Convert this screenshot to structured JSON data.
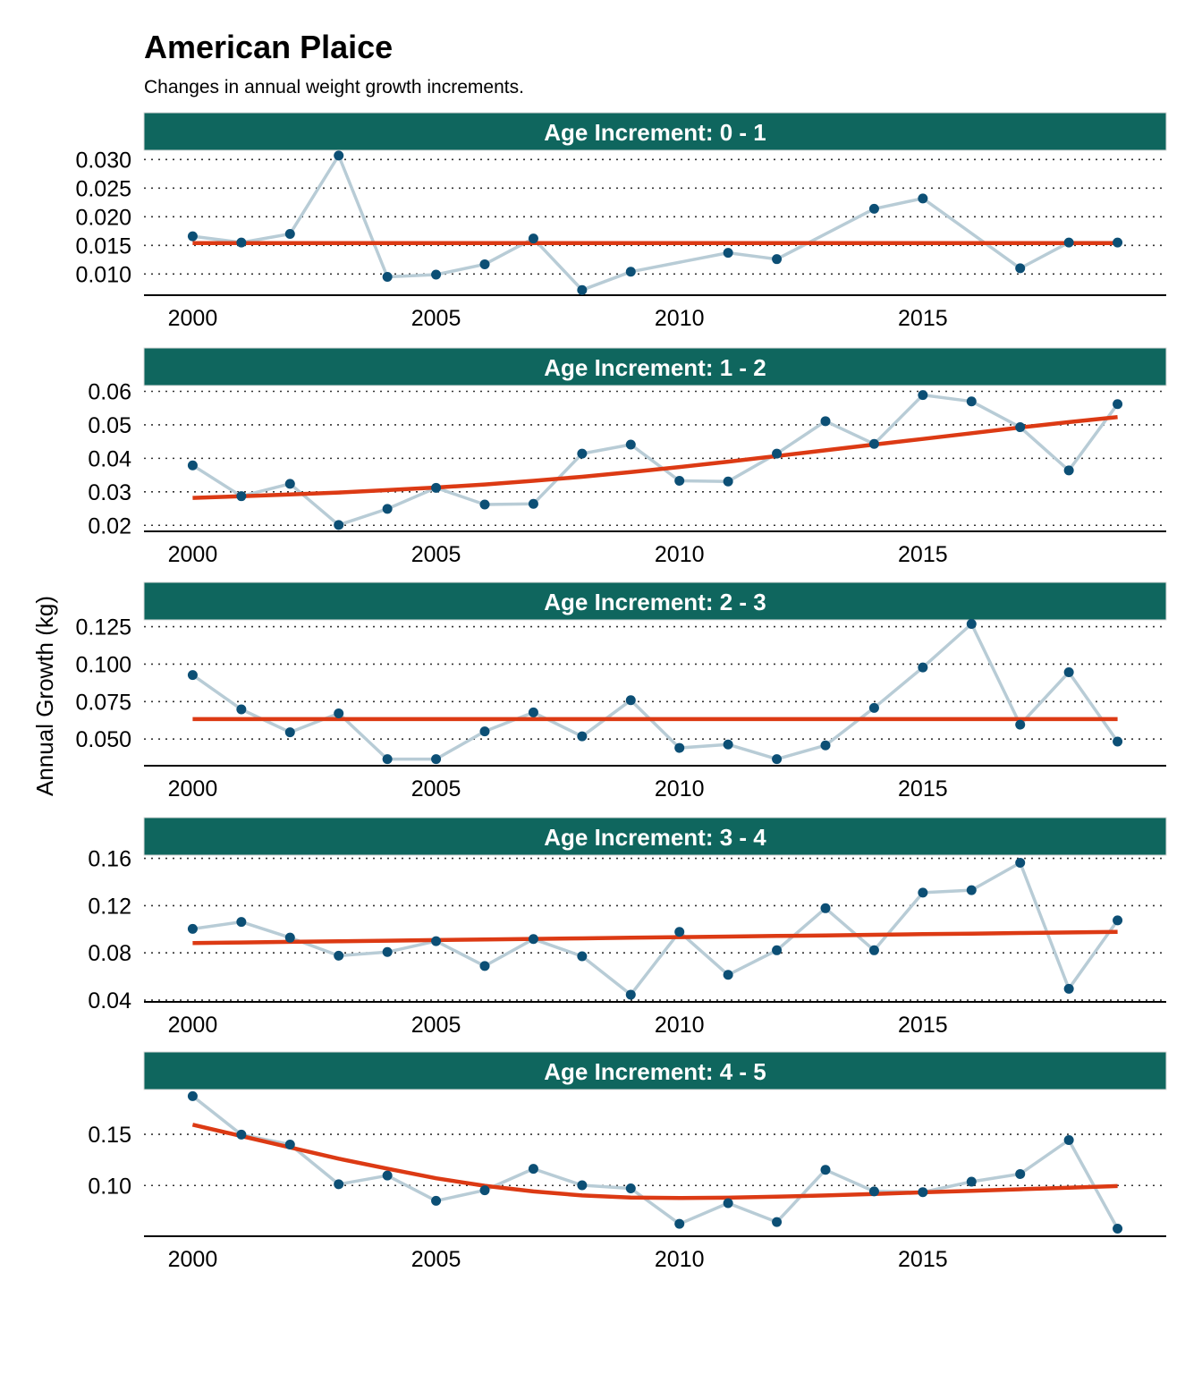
{
  "title": "American Plaice",
  "subtitle": "Changes in annual weight growth increments.",
  "ylabel": "Annual Growth  (kg)",
  "colors": {
    "strip_fill": "#0f665e",
    "strip_text": "#ffffff",
    "series_line": "#b8ccd6",
    "series_point": "#0c4f75",
    "trend_line": "#dc3a14",
    "grid": "#333333",
    "axis": "#000000"
  },
  "chart_data": [
    {
      "type": "line",
      "facet": "Age Increment: 0 - 1",
      "x": [
        2000,
        2001,
        2002,
        2003,
        2004,
        2005,
        2006,
        2007,
        2008,
        2009,
        2011,
        2012,
        2014,
        2015,
        2017,
        2018,
        2019
      ],
      "y": [
        0.0166,
        0.0155,
        0.017,
        0.0307,
        0.0095,
        0.0099,
        0.0117,
        0.0162,
        0.0072,
        0.0104,
        0.0137,
        0.0126,
        0.0214,
        0.0232,
        0.011,
        0.0155,
        0.0155
      ],
      "trend": [
        0.0154,
        0.0154,
        0.0154,
        0.0154,
        0.0154,
        0.0154,
        0.0154,
        0.0154,
        0.0154,
        0.0154,
        0.0154,
        0.0154,
        0.0154,
        0.0154,
        0.0154,
        0.0154,
        0.0154
      ],
      "ylim": [
        0.0063,
        0.0313
      ],
      "yticks": [
        0.01,
        0.015,
        0.02,
        0.025,
        0.03
      ],
      "ytick_labels": [
        "0.010",
        "0.015",
        "0.020",
        "0.025",
        "0.030"
      ],
      "xlim": [
        1999,
        2020
      ],
      "xticks": [
        2000,
        2005,
        2010,
        2015
      ],
      "xtick_labels": [
        "2000",
        "2005",
        "2010",
        "2015"
      ],
      "grid": "horizontal dotted"
    },
    {
      "type": "line",
      "facet": "Age Increment: 1 - 2",
      "x": [
        2000,
        2001,
        2002,
        2003,
        2004,
        2005,
        2006,
        2007,
        2008,
        2009,
        2010,
        2011,
        2012,
        2013,
        2014,
        2015,
        2016,
        2017,
        2018,
        2019
      ],
      "y": [
        0.0379,
        0.0287,
        0.0324,
        0.0201,
        0.0249,
        0.0312,
        0.0262,
        0.0264,
        0.0414,
        0.0441,
        0.0333,
        0.0331,
        0.0414,
        0.0511,
        0.0443,
        0.0589,
        0.057,
        0.0493,
        0.0364,
        0.0562
      ],
      "trend": [
        0.0282,
        0.0287,
        0.0292,
        0.0298,
        0.0305,
        0.0313,
        0.0322,
        0.0333,
        0.0345,
        0.0359,
        0.0374,
        0.039,
        0.0407,
        0.0424,
        0.0441,
        0.0458,
        0.0475,
        0.0492,
        0.0508,
        0.0523
      ],
      "ylim": [
        0.0182,
        0.0612
      ],
      "yticks": [
        0.02,
        0.03,
        0.04,
        0.05,
        0.06
      ],
      "ytick_labels": [
        "0.02",
        "0.03",
        "0.04",
        "0.05",
        "0.06"
      ],
      "xlim": [
        1999,
        2020
      ],
      "xticks": [
        2000,
        2005,
        2010,
        2015
      ],
      "xtick_labels": [
        "2000",
        "2005",
        "2010",
        "2015"
      ],
      "grid": "horizontal dotted"
    },
    {
      "type": "line",
      "facet": "Age Increment: 2 - 3",
      "x": [
        2000,
        2001,
        2002,
        2003,
        2004,
        2005,
        2006,
        2007,
        2008,
        2009,
        2010,
        2011,
        2012,
        2013,
        2014,
        2015,
        2016,
        2017,
        2018,
        2019
      ],
      "y": [
        0.0927,
        0.0698,
        0.0545,
        0.0671,
        0.0366,
        0.0366,
        0.0551,
        0.0678,
        0.0518,
        0.0759,
        0.0441,
        0.0464,
        0.0366,
        0.0458,
        0.0708,
        0.0978,
        0.1268,
        0.0596,
        0.0946,
        0.0483
      ],
      "trend": [
        0.0633,
        0.0633,
        0.0633,
        0.0633,
        0.0633,
        0.0633,
        0.0633,
        0.0633,
        0.0633,
        0.0633,
        0.0633,
        0.0633,
        0.0633,
        0.0633,
        0.0633,
        0.0633,
        0.0633,
        0.0633,
        0.0633,
        0.0633
      ],
      "ylim": [
        0.0322,
        0.1283
      ],
      "yticks": [
        0.05,
        0.075,
        0.1,
        0.125
      ],
      "ytick_labels": [
        "0.050",
        "0.075",
        "0.100",
        "0.125"
      ],
      "xlim": [
        1999,
        2020
      ],
      "xticks": [
        2000,
        2005,
        2010,
        2015
      ],
      "xtick_labels": [
        "2000",
        "2005",
        "2010",
        "2015"
      ],
      "grid": "horizontal dotted"
    },
    {
      "type": "line",
      "facet": "Age Increment: 3 - 4",
      "x": [
        2000,
        2001,
        2002,
        2003,
        2004,
        2005,
        2006,
        2007,
        2008,
        2009,
        2010,
        2011,
        2012,
        2013,
        2014,
        2015,
        2016,
        2017,
        2018,
        2019
      ],
      "y": [
        0.1003,
        0.1062,
        0.0929,
        0.0776,
        0.0807,
        0.0899,
        0.0689,
        0.0917,
        0.0771,
        0.0446,
        0.0978,
        0.0614,
        0.0822,
        0.1178,
        0.0822,
        0.131,
        0.1331,
        0.1563,
        0.0496,
        0.1075
      ],
      "trend": [
        0.0883,
        0.0888,
        0.0893,
        0.0898,
        0.0903,
        0.0908,
        0.0913,
        0.0918,
        0.0923,
        0.0928,
        0.0933,
        0.0938,
        0.0943,
        0.0948,
        0.0953,
        0.0958,
        0.0963,
        0.0968,
        0.0973,
        0.0978
      ],
      "ylim": [
        0.0385,
        0.1612
      ],
      "yticks": [
        0.04,
        0.08,
        0.12,
        0.16
      ],
      "ytick_labels": [
        "0.04",
        "0.08",
        "0.12",
        "0.16"
      ],
      "xlim": [
        1999,
        2020
      ],
      "xticks": [
        2000,
        2005,
        2010,
        2015
      ],
      "xtick_labels": [
        "2000",
        "2005",
        "2010",
        "2015"
      ],
      "grid": "horizontal dotted"
    },
    {
      "type": "line",
      "facet": "Age Increment: 4 - 5",
      "x": [
        2000,
        2001,
        2002,
        2003,
        2004,
        2005,
        2006,
        2007,
        2008,
        2009,
        2010,
        2011,
        2012,
        2013,
        2014,
        2015,
        2016,
        2017,
        2018,
        2019
      ],
      "y": [
        0.1873,
        0.1497,
        0.14,
        0.1012,
        0.1097,
        0.085,
        0.0953,
        0.1163,
        0.1002,
        0.0972,
        0.0625,
        0.0827,
        0.0643,
        0.1153,
        0.0942,
        0.0935,
        0.1037,
        0.1112,
        0.1444,
        0.0578
      ],
      "trend": [
        0.1594,
        0.1483,
        0.1372,
        0.1262,
        0.1165,
        0.107,
        0.0997,
        0.0942,
        0.0903,
        0.0882,
        0.0877,
        0.0881,
        0.089,
        0.0903,
        0.0917,
        0.0933,
        0.0948,
        0.0963,
        0.0979,
        0.0994
      ],
      "ylim": [
        0.0504,
        0.192
      ],
      "yticks": [
        0.1,
        0.15
      ],
      "ytick_labels": [
        "0.10",
        "0.15"
      ],
      "xlim": [
        1999,
        2020
      ],
      "xticks": [
        2000,
        2005,
        2010,
        2015
      ],
      "xtick_labels": [
        "2000",
        "2005",
        "2010",
        "2015"
      ],
      "grid": "horizontal dotted"
    }
  ]
}
